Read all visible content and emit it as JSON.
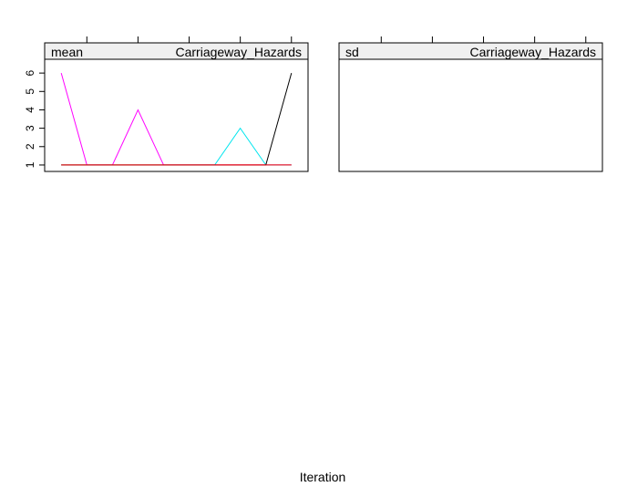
{
  "xlabel": "Iteration",
  "chart_data": [
    {
      "type": "line",
      "strip_label_left": "mean",
      "strip_label_right": "Carriageway_Hazards",
      "ylabel": "",
      "xlabel": "Iteration",
      "x": [
        1,
        2,
        3,
        4,
        5,
        6,
        7,
        8,
        9,
        10
      ],
      "xlim": [
        0.35,
        10.65
      ],
      "ylim": [
        0.65,
        6.75
      ],
      "y_ticks": [
        1,
        2,
        3,
        4,
        5,
        6
      ],
      "grid": false,
      "series": [
        {
          "color": "#ff00ff",
          "values": [
            6,
            1,
            1,
            4,
            1,
            1,
            1,
            1,
            1,
            1
          ]
        },
        {
          "color": "#00e5ee",
          "values": [
            1,
            1,
            1,
            1,
            1,
            1,
            1,
            3,
            1,
            1
          ]
        },
        {
          "color": "#000000",
          "values": [
            1,
            1,
            1,
            1,
            1,
            1,
            1,
            1,
            1,
            6
          ]
        },
        {
          "color": "#ff0000",
          "values": [
            1,
            1,
            1,
            1,
            1,
            1,
            1,
            1,
            1,
            1
          ]
        }
      ]
    },
    {
      "type": "line",
      "strip_label_left": "sd",
      "strip_label_right": "Carriageway_Hazards",
      "xlabel": "Iteration",
      "series": []
    }
  ]
}
